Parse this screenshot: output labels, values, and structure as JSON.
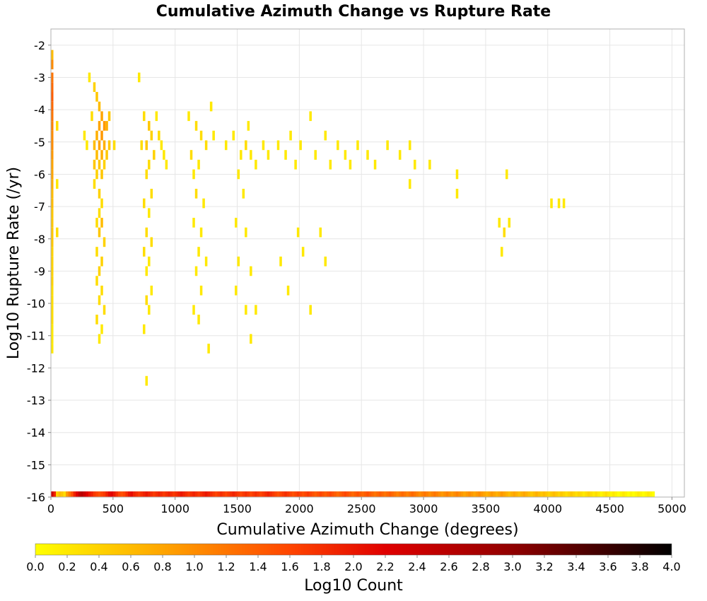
{
  "chart_data": {
    "type": "heatmap",
    "title": "Cumulative Azimuth Change vs Rupture Rate",
    "xlabel": "Cumulative Azimuth Change (degrees)",
    "ylabel": "Log10 Rupture Rate (/yr)",
    "xlim": [
      0,
      5100
    ],
    "ylim": [
      -16,
      -1.5
    ],
    "x_ticks": [
      0,
      500,
      1000,
      1500,
      2000,
      2500,
      3000,
      3500,
      4000,
      4500,
      5000
    ],
    "y_ticks": [
      -2,
      -3,
      -4,
      -5,
      -6,
      -7,
      -8,
      -9,
      -10,
      -11,
      -12,
      -13,
      -14,
      -15,
      -16
    ],
    "grid": true,
    "bin_width_x": 20,
    "bin_height_y": 0.3,
    "colorbar": {
      "label": "Log10 Count",
      "range": [
        0,
        4
      ],
      "ticks": [
        "0.0",
        "0.2",
        "0.4",
        "0.6",
        "0.8",
        "1.0",
        "1.2",
        "1.4",
        "1.6",
        "1.8",
        "2.0",
        "2.2",
        "2.4",
        "2.6",
        "2.8",
        "3.0",
        "3.2",
        "3.4",
        "3.6",
        "3.8",
        "4.0"
      ],
      "colors": [
        "#ffff00",
        "#ffa500",
        "#ff4500",
        "#e00000",
        "#900000",
        "#000000"
      ]
    },
    "cells": [
      [
        0,
        -2.3,
        0.6
      ],
      [
        0,
        -2.6,
        1.0
      ],
      [
        0,
        -3.0,
        1.2
      ],
      [
        0,
        -3.3,
        1.3
      ],
      [
        0,
        -3.6,
        1.4
      ],
      [
        0,
        -3.9,
        1.3
      ],
      [
        0,
        -4.2,
        1.2
      ],
      [
        0,
        -4.5,
        1.1
      ],
      [
        0,
        -4.8,
        1.0
      ],
      [
        0,
        -5.1,
        1.0
      ],
      [
        0,
        -5.4,
        0.9
      ],
      [
        0,
        -5.7,
        0.8
      ],
      [
        0,
        -6.0,
        0.8
      ],
      [
        0,
        -6.3,
        0.7
      ],
      [
        0,
        -6.6,
        0.6
      ],
      [
        0,
        -6.9,
        0.6
      ],
      [
        0,
        -7.2,
        0.5
      ],
      [
        0,
        -7.5,
        0.5
      ],
      [
        0,
        -7.8,
        0.5
      ],
      [
        0,
        -8.1,
        0.5
      ],
      [
        0,
        -8.4,
        0.4
      ],
      [
        0,
        -8.7,
        0.4
      ],
      [
        0,
        -9.0,
        0.4
      ],
      [
        0,
        -9.3,
        0.4
      ],
      [
        0,
        -9.6,
        0.3
      ],
      [
        0,
        -9.9,
        0.3
      ],
      [
        0,
        -10.2,
        0.3
      ],
      [
        0,
        -10.5,
        0.3
      ],
      [
        0,
        -10.8,
        0.2
      ],
      [
        0,
        -11.1,
        0.2
      ],
      [
        0,
        -11.4,
        0.2
      ],
      [
        40,
        -4.5,
        0.3
      ],
      [
        40,
        -6.3,
        0.2
      ],
      [
        40,
        -7.8,
        0.3
      ],
      [
        300,
        -3.0,
        0.2
      ],
      [
        340,
        -3.3,
        0.4
      ],
      [
        360,
        -3.6,
        0.5
      ],
      [
        380,
        -3.9,
        0.6
      ],
      [
        400,
        -4.2,
        0.8
      ],
      [
        420,
        -4.5,
        0.9
      ],
      [
        380,
        -4.5,
        0.8
      ],
      [
        360,
        -4.8,
        0.7
      ],
      [
        400,
        -4.8,
        0.9
      ],
      [
        440,
        -4.5,
        0.7
      ],
      [
        460,
        -4.2,
        0.5
      ],
      [
        340,
        -5.1,
        0.6
      ],
      [
        380,
        -5.1,
        0.8
      ],
      [
        420,
        -5.1,
        0.7
      ],
      [
        460,
        -5.1,
        0.5
      ],
      [
        500,
        -5.1,
        0.3
      ],
      [
        360,
        -5.4,
        0.6
      ],
      [
        400,
        -5.4,
        0.7
      ],
      [
        440,
        -5.4,
        0.5
      ],
      [
        340,
        -5.7,
        0.5
      ],
      [
        380,
        -5.7,
        0.5
      ],
      [
        420,
        -5.7,
        0.4
      ],
      [
        360,
        -6.0,
        0.4
      ],
      [
        400,
        -6.0,
        0.5
      ],
      [
        340,
        -6.3,
        0.3
      ],
      [
        380,
        -6.6,
        0.4
      ],
      [
        400,
        -6.9,
        0.3
      ],
      [
        380,
        -7.2,
        0.3
      ],
      [
        360,
        -7.5,
        0.3
      ],
      [
        400,
        -7.5,
        0.6
      ],
      [
        380,
        -7.8,
        0.5
      ],
      [
        420,
        -8.1,
        0.4
      ],
      [
        360,
        -8.4,
        0.3
      ],
      [
        400,
        -8.7,
        0.4
      ],
      [
        380,
        -9.0,
        0.4
      ],
      [
        360,
        -9.3,
        0.3
      ],
      [
        400,
        -9.6,
        0.3
      ],
      [
        380,
        -9.9,
        0.3
      ],
      [
        420,
        -10.2,
        0.3
      ],
      [
        360,
        -10.5,
        0.3
      ],
      [
        400,
        -10.8,
        0.2
      ],
      [
        380,
        -11.1,
        0.2
      ],
      [
        260,
        -4.8,
        0.2
      ],
      [
        280,
        -5.1,
        0.2
      ],
      [
        320,
        -4.2,
        0.3
      ],
      [
        700,
        -3.0,
        0.2
      ],
      [
        740,
        -4.2,
        0.3
      ],
      [
        780,
        -4.5,
        0.5
      ],
      [
        800,
        -4.8,
        0.4
      ],
      [
        760,
        -5.1,
        0.5
      ],
      [
        720,
        -5.1,
        0.3
      ],
      [
        820,
        -5.4,
        0.4
      ],
      [
        780,
        -5.7,
        0.3
      ],
      [
        760,
        -6.0,
        0.3
      ],
      [
        800,
        -6.6,
        0.3
      ],
      [
        740,
        -6.9,
        0.3
      ],
      [
        780,
        -7.2,
        0.2
      ],
      [
        760,
        -7.8,
        0.3
      ],
      [
        800,
        -8.1,
        0.3
      ],
      [
        740,
        -8.4,
        0.3
      ],
      [
        780,
        -8.7,
        0.2
      ],
      [
        760,
        -9.0,
        0.2
      ],
      [
        800,
        -9.6,
        0.2
      ],
      [
        760,
        -9.9,
        0.3
      ],
      [
        780,
        -10.2,
        0.2
      ],
      [
        740,
        -10.8,
        0.2
      ],
      [
        760,
        -12.4,
        0.2
      ],
      [
        860,
        -4.8,
        0.3
      ],
      [
        880,
        -5.1,
        0.2
      ],
      [
        900,
        -5.4,
        0.2
      ],
      [
        920,
        -5.7,
        0.2
      ],
      [
        840,
        -4.2,
        0.2
      ],
      [
        1100,
        -4.2,
        0.2
      ],
      [
        1160,
        -4.5,
        0.3
      ],
      [
        1200,
        -4.8,
        0.3
      ],
      [
        1240,
        -5.1,
        0.3
      ],
      [
        1120,
        -5.4,
        0.3
      ],
      [
        1180,
        -5.7,
        0.2
      ],
      [
        1140,
        -6.0,
        0.2
      ],
      [
        1160,
        -6.6,
        0.3
      ],
      [
        1220,
        -6.9,
        0.2
      ],
      [
        1140,
        -7.5,
        0.2
      ],
      [
        1200,
        -7.8,
        0.2
      ],
      [
        1180,
        -8.4,
        0.2
      ],
      [
        1240,
        -8.7,
        0.2
      ],
      [
        1160,
        -9.0,
        0.2
      ],
      [
        1200,
        -9.6,
        0.2
      ],
      [
        1140,
        -10.2,
        0.2
      ],
      [
        1180,
        -10.5,
        0.2
      ],
      [
        1260,
        -11.4,
        0.2
      ],
      [
        1300,
        -4.8,
        0.2
      ],
      [
        1280,
        -3.9,
        0.2
      ],
      [
        1400,
        -5.1,
        0.2
      ],
      [
        1460,
        -4.8,
        0.2
      ],
      [
        1520,
        -5.4,
        0.2
      ],
      [
        1560,
        -5.1,
        0.3
      ],
      [
        1600,
        -5.4,
        0.2
      ],
      [
        1640,
        -5.7,
        0.2
      ],
      [
        1580,
        -4.5,
        0.2
      ],
      [
        1700,
        -5.1,
        0.2
      ],
      [
        1500,
        -6.0,
        0.2
      ],
      [
        1540,
        -6.6,
        0.2
      ],
      [
        1480,
        -7.5,
        0.2
      ],
      [
        1560,
        -7.8,
        0.2
      ],
      [
        1500,
        -8.7,
        0.2
      ],
      [
        1600,
        -9.0,
        0.2
      ],
      [
        1480,
        -9.6,
        0.2
      ],
      [
        1560,
        -10.2,
        0.2
      ],
      [
        1640,
        -10.2,
        0.2
      ],
      [
        1600,
        -11.1,
        0.2
      ],
      [
        1740,
        -5.4,
        0.2
      ],
      [
        1820,
        -5.1,
        0.2
      ],
      [
        1880,
        -5.4,
        0.2
      ],
      [
        1920,
        -4.8,
        0.2
      ],
      [
        1960,
        -5.7,
        0.2
      ],
      [
        2000,
        -5.1,
        0.2
      ],
      [
        2080,
        -4.2,
        0.2
      ],
      [
        2120,
        -5.4,
        0.2
      ],
      [
        2200,
        -4.8,
        0.2
      ],
      [
        2240,
        -5.7,
        0.2
      ],
      [
        2300,
        -5.1,
        0.2
      ],
      [
        2360,
        -5.4,
        0.2
      ],
      [
        2400,
        -5.7,
        0.2
      ],
      [
        2460,
        -5.1,
        0.2
      ],
      [
        2540,
        -5.4,
        0.2
      ],
      [
        2600,
        -5.7,
        0.2
      ],
      [
        2700,
        -5.1,
        0.2
      ],
      [
        2800,
        -5.4,
        0.2
      ],
      [
        2880,
        -5.1,
        0.2
      ],
      [
        2920,
        -5.7,
        0.2
      ],
      [
        3040,
        -5.7,
        0.2
      ],
      [
        3260,
        -6.0,
        0.2
      ],
      [
        3260,
        -6.6,
        0.2
      ],
      [
        2880,
        -6.3,
        0.2
      ],
      [
        1980,
        -7.8,
        0.2
      ],
      [
        2160,
        -7.8,
        0.2
      ],
      [
        2020,
        -8.4,
        0.2
      ],
      [
        2200,
        -8.7,
        0.2
      ],
      [
        2080,
        -10.2,
        0.2
      ],
      [
        1840,
        -8.7,
        0.2
      ],
      [
        1900,
        -9.6,
        0.2
      ],
      [
        3600,
        -7.5,
        0.2
      ],
      [
        3640,
        -7.8,
        0.3
      ],
      [
        3680,
        -7.5,
        0.2
      ],
      [
        3620,
        -8.4,
        0.2
      ],
      [
        3660,
        -6.0,
        0.2
      ],
      [
        4020,
        -6.9,
        0.2
      ],
      [
        4080,
        -6.9,
        0.2
      ],
      [
        4120,
        -6.9,
        0.2
      ]
    ],
    "floor_row": {
      "y": -16,
      "x_step": 20,
      "log10_counts": [
        2.4,
        1.9,
        0.4,
        0.6,
        0.5,
        0.3,
        0.9,
        1.2,
        1.5,
        1.9,
        2.2,
        2.5,
        2.6,
        2.4,
        2.2,
        2.0,
        1.9,
        1.7,
        1.6,
        1.5,
        1.6,
        1.7,
        1.9,
        2.1,
        2.2,
        2.0,
        1.8,
        1.6,
        1.5,
        1.6,
        1.8,
        2.0,
        2.1,
        1.9,
        1.8,
        1.7,
        1.8,
        1.9,
        2.0,
        1.9,
        1.8,
        1.7,
        1.8,
        1.9,
        1.8,
        1.7,
        1.8,
        1.9,
        1.8,
        1.7,
        1.8,
        1.9,
        2.0,
        1.9,
        1.8,
        1.7,
        1.8,
        1.9,
        1.8,
        1.7,
        1.8,
        1.9,
        2.0,
        1.9,
        1.8,
        1.7,
        1.6,
        1.7,
        1.8,
        1.7,
        1.6,
        1.7,
        1.8,
        1.9,
        1.8,
        1.7,
        1.6,
        1.7,
        1.8,
        1.7,
        1.6,
        1.7,
        1.8,
        1.7,
        1.6,
        1.7,
        1.8,
        1.9,
        1.8,
        1.7,
        1.6,
        1.5,
        1.6,
        1.7,
        1.8,
        1.7,
        1.6,
        1.5,
        1.6,
        1.7,
        1.6,
        1.5,
        1.6,
        1.7,
        1.6,
        1.5,
        1.4,
        1.5,
        1.6,
        1.5,
        1.4,
        1.5,
        1.6,
        1.5,
        1.4,
        1.3,
        1.4,
        1.5,
        1.6,
        1.5,
        1.4,
        1.3,
        1.4,
        1.5,
        1.4,
        1.3,
        1.4,
        1.5,
        1.4,
        1.3,
        1.2,
        1.3,
        1.4,
        1.3,
        1.2,
        1.3,
        1.4,
        1.3,
        1.2,
        1.1,
        1.2,
        1.3,
        1.2,
        1.1,
        1.2,
        1.3,
        1.2,
        1.1,
        1.0,
        1.1,
        1.2,
        1.1,
        1.0,
        1.1,
        1.2,
        1.1,
        1.0,
        0.9,
        1.0,
        1.1,
        1.0,
        0.9,
        1.0,
        1.1,
        1.0,
        0.9,
        0.8,
        0.9,
        1.0,
        0.9,
        0.8,
        0.9,
        1.0,
        0.9,
        0.8,
        0.7,
        0.8,
        0.9,
        0.8,
        0.7,
        0.8,
        0.9,
        0.8,
        0.7,
        0.6,
        0.7,
        0.8,
        0.7,
        0.6,
        0.7,
        0.8,
        0.7,
        0.6,
        0.5,
        0.6,
        0.7,
        0.6,
        0.5,
        0.6,
        0.5,
        0.4,
        0.5,
        0.6,
        0.5,
        0.4,
        0.5,
        0.4,
        0.3,
        0.4,
        0.5,
        0.4,
        0.3,
        0.4,
        0.3,
        0.2,
        0.3,
        0.4,
        0.3,
        0.2,
        0.3,
        0.2,
        0.1,
        0.2,
        0.3,
        0.2,
        0.1,
        0.2,
        0.1,
        0.0,
        0.1,
        0.2,
        0.1,
        0.0,
        0.1,
        0.0,
        0.1,
        0.2,
        0.1,
        0.0,
        0.1,
        0.2,
        0.1,
        0.0
      ]
    }
  }
}
